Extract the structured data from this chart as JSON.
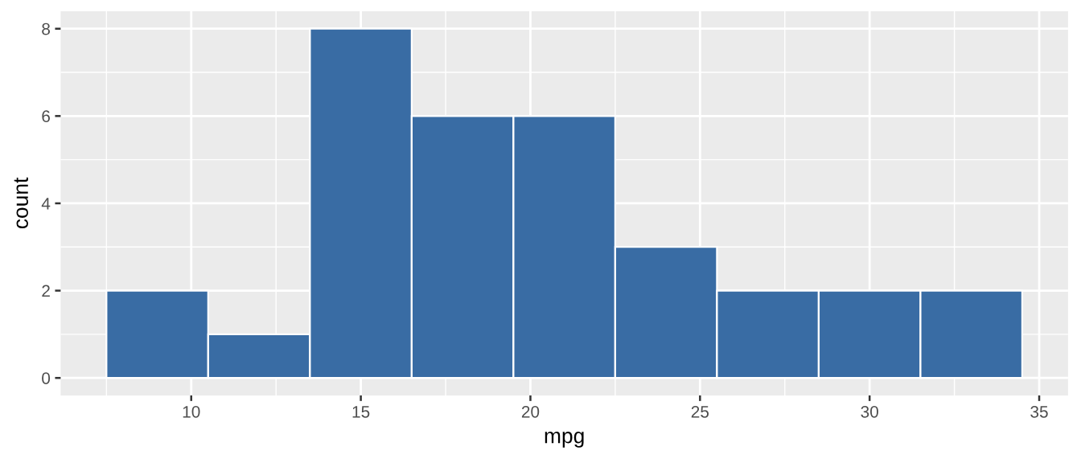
{
  "chart_data": {
    "type": "histogram",
    "xlabel": "mpg",
    "ylabel": "count",
    "bins": [
      7.5,
      10.5,
      13.5,
      16.5,
      19.5,
      22.5,
      25.5,
      28.5,
      31.5,
      34.5
    ],
    "values": [
      2,
      1,
      8,
      6,
      6,
      3,
      2,
      2,
      2
    ],
    "color": "#396ca4",
    "xlim": [
      6.15,
      35.85
    ],
    "ylim": [
      -0.4,
      8.4
    ],
    "xticks": [
      10,
      15,
      20,
      25,
      30,
      35
    ],
    "yticks": [
      0,
      2,
      4,
      6,
      8
    ],
    "grid": true
  }
}
